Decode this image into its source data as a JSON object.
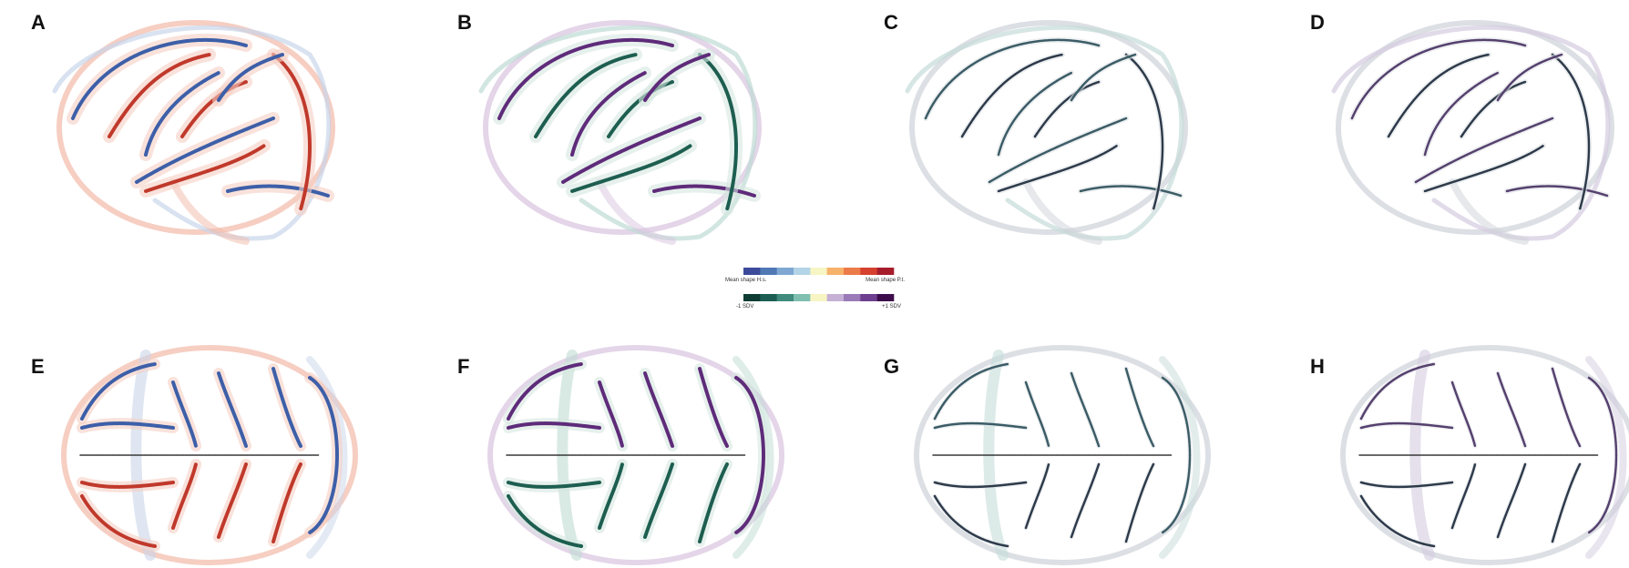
{
  "panels": [
    "A",
    "B",
    "C",
    "D",
    "E",
    "F",
    "G",
    "H"
  ],
  "legend": [
    {
      "colors": [
        "#3b4a9a",
        "#4f78b5",
        "#7ea8d2",
        "#b3d3e6",
        "#f6f5c4",
        "#f6b26b",
        "#ec7b4a",
        "#d6402f",
        "#a71c2b"
      ],
      "left_label": "Mean shape H.s.",
      "right_label": "Mean shape P.t."
    },
    {
      "colors": [
        "#0f3d33",
        "#1c5e53",
        "#3f8b7d",
        "#7fbfb0",
        "#f7f5c4",
        "#c6b0d6",
        "#9b7ab8",
        "#6d3f8e",
        "#3d0d4b"
      ],
      "left_label": "-1 SDV",
      "right_label": "+1 SDV"
    }
  ]
}
